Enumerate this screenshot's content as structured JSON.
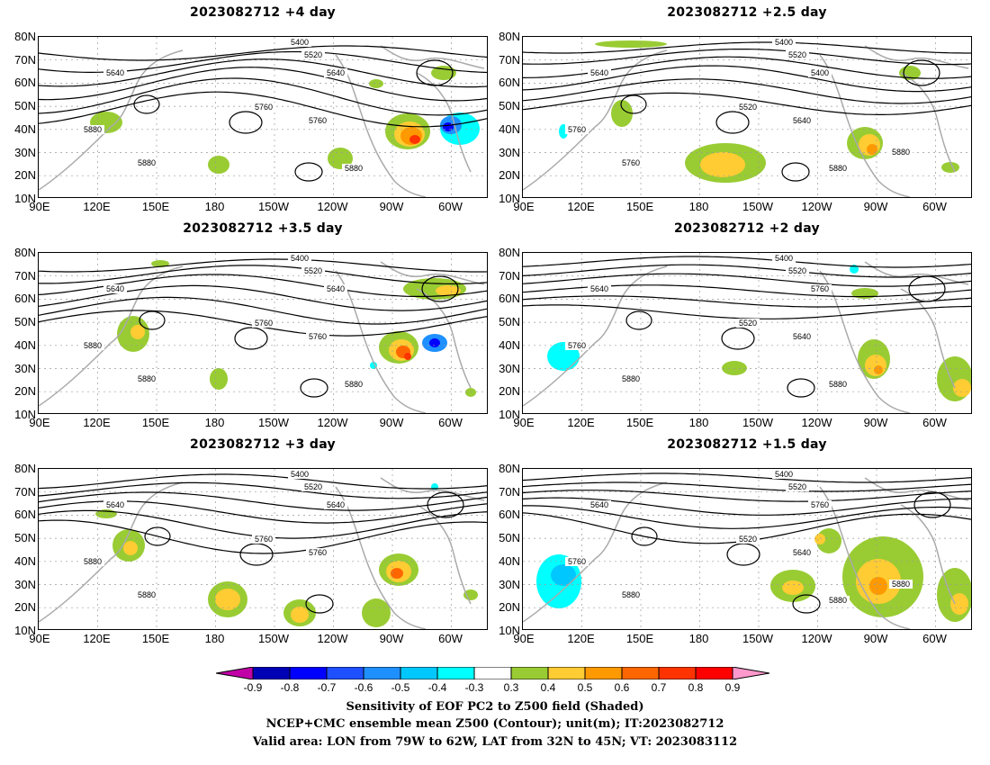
{
  "panels": [
    {
      "title": "2023082712  +4 day",
      "contour_labels": [
        "5400",
        "5520",
        "5640",
        "5640",
        "5760",
        "5760",
        "5880",
        "5880",
        "5880"
      ]
    },
    {
      "title": "2023082712  +2.5 day",
      "contour_labels": [
        "5400",
        "5520",
        "5640",
        "5400",
        "5520",
        "5640",
        "5760",
        "5760",
        "5880",
        "5880"
      ]
    },
    {
      "title": "2023082712  +3.5 day",
      "contour_labels": [
        "5400",
        "5520",
        "5640",
        "5640",
        "5760",
        "5760",
        "5880",
        "5880",
        "5880"
      ]
    },
    {
      "title": "2023082712  +2 day",
      "contour_labels": [
        "5400",
        "5520",
        "5640",
        "5760",
        "5520",
        "5640",
        "5760",
        "5880",
        "5880"
      ]
    },
    {
      "title": "2023082712  +3 day",
      "contour_labels": [
        "5400",
        "5520",
        "5640",
        "5640",
        "5760",
        "5760",
        "5880",
        "5880"
      ]
    },
    {
      "title": "2023082712  +1.5 day",
      "contour_labels": [
        "5400",
        "5520",
        "5640",
        "5760",
        "5520",
        "5640",
        "5760",
        "5880",
        "5880",
        "5880"
      ]
    }
  ],
  "lat_labels": [
    "80N",
    "70N",
    "60N",
    "50N",
    "40N",
    "30N",
    "20N",
    "10N"
  ],
  "lon_labels": [
    "90E",
    "120E",
    "150E",
    "180",
    "150W",
    "120W",
    "90W",
    "60W"
  ],
  "colorbar": {
    "ticks": [
      "-0.9",
      "-0.8",
      "-0.7",
      "-0.6",
      "-0.5",
      "-0.4",
      "-0.3",
      "0.3",
      "0.4",
      "0.5",
      "0.6",
      "0.7",
      "0.8",
      "0.9"
    ],
    "colors": [
      "#c200a8",
      "#0000b4",
      "#0000ff",
      "#1e50ff",
      "#1e90ff",
      "#00c8ff",
      "#00ffff",
      "#ffffff",
      "#99cc33",
      "#ffcc33",
      "#ff9900",
      "#ff6600",
      "#ff3300",
      "#ff0000",
      "#ff99cc"
    ]
  },
  "caption": {
    "line1": "Sensitivity of EOF PC2 to Z500 field (Shaded)",
    "line2": "NCEP+CMC ensemble mean Z500 (Contour); unit(m); IT:2023082712",
    "line3": "Valid area: LON from 79W to 62W, LAT from 32N to 45N; VT: 2023083112"
  }
}
